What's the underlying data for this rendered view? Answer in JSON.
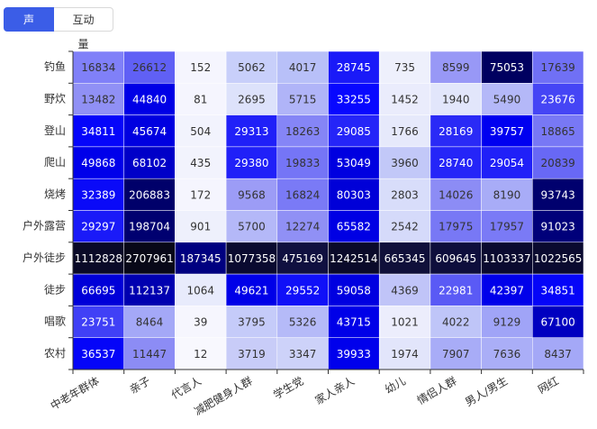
{
  "tabs": [
    "声量",
    "互动量"
  ],
  "chart_data": {
    "type": "heatmap",
    "x_categories": [
      "中老年群体",
      "亲子",
      "代言人",
      "减肥健身人群",
      "学生党",
      "家人亲人",
      "幼儿",
      "情侣人群",
      "男人/男生",
      "网红"
    ],
    "y_categories": [
      "钓鱼",
      "野炊",
      "登山",
      "爬山",
      "烧烤",
      "户外露营",
      "户外徒步",
      "徒步",
      "唱歌",
      "农村"
    ],
    "values": [
      [
        16834,
        26612,
        152,
        5062,
        4017,
        28745,
        735,
        8599,
        75053,
        17639
      ],
      [
        13482,
        44840,
        81,
        2695,
        5715,
        33255,
        1452,
        1940,
        5490,
        23676
      ],
      [
        34811,
        45674,
        504,
        29313,
        18263,
        29085,
        1766,
        28169,
        39757,
        18865
      ],
      [
        49868,
        68102,
        435,
        29380,
        19833,
        53049,
        3960,
        28740,
        29054,
        20839
      ],
      [
        32389,
        206883,
        172,
        9568,
        16824,
        80303,
        2803,
        14026,
        8190,
        93743
      ],
      [
        29297,
        198704,
        901,
        5700,
        12274,
        65582,
        2542,
        17975,
        17957,
        91023
      ],
      [
        1112828,
        2707961,
        187345,
        1077358,
        475169,
        1242514,
        665345,
        609645,
        1103337,
        1022565
      ],
      [
        66695,
        112137,
        1064,
        49621,
        29552,
        59058,
        4369,
        22981,
        42397,
        34851
      ],
      [
        23751,
        8464,
        39,
        3795,
        5326,
        43715,
        1021,
        4022,
        9129,
        67100
      ],
      [
        36537,
        11447,
        12,
        3719,
        3347,
        39933,
        1974,
        7907,
        7636,
        8437
      ]
    ],
    "colors": [
      [
        "#8080f8",
        "#6060f5",
        "#f5f5fe",
        "#c8cffa",
        "#b8c0f8",
        "#1a1af8",
        "#eef0fc",
        "#9898f6",
        "#000060",
        "#7070f5"
      ],
      [
        "#9090f5",
        "#0000e6",
        "#f5f5fe",
        "#dde2fb",
        "#b0b4f8",
        "#0808ff",
        "#eaecfc",
        "#e2e6fb",
        "#b4b8f8",
        "#4545f5"
      ],
      [
        "#0505fa",
        "#0000e0",
        "#f2f3fd",
        "#2020f8",
        "#8585f6",
        "#2525f8",
        "#e6e9fb",
        "#2a2af6",
        "#0000f0",
        "#7878f5"
      ],
      [
        "#0000ea",
        "#0000c8",
        "#f2f3fd",
        "#2020f8",
        "#7575f6",
        "#0000e0",
        "#c2c8f8",
        "#2525f8",
        "#2020f8",
        "#6868f5"
      ],
      [
        "#0a0af8",
        "#00006a",
        "#f5f5fe",
        "#9c9cf6",
        "#7a7af6",
        "#0000d8",
        "#d8ddfa",
        "#8c8cf5",
        "#a8acf7",
        "#00006e"
      ],
      [
        "#1a1af8",
        "#000070",
        "#eef0fc",
        "#b4b8f8",
        "#9090f5",
        "#0000e4",
        "#d5dafa",
        "#7878f5",
        "#7a7af6",
        "#00007a"
      ],
      [
        "#0a0a28",
        "#080818",
        "#000080",
        "#0a0a30",
        "#101040",
        "#0a0a2a",
        "#10103a",
        "#0e0e3c",
        "#0a0a30",
        "#0a0a30"
      ],
      [
        "#0000d8",
        "#0000b0",
        "#e8ebfc",
        "#0000e8",
        "#1010f8",
        "#0000e0",
        "#c0c4f8",
        "#5a5af5",
        "#0000ea",
        "#0505f8"
      ],
      [
        "#4040f6",
        "#a4a8f7",
        "#f6f6fe",
        "#c5cbf9",
        "#b5baf8",
        "#0000e8",
        "#ecedfc",
        "#bfc5f8",
        "#a0a4f7",
        "#0000c0"
      ],
      [
        "#0505f8",
        "#8c8cf5",
        "#f8f8fe",
        "#c8ccf8",
        "#cdd2f9",
        "#0000ec",
        "#e2e5fb",
        "#a8acf7",
        "#aaaef7",
        "#a4a8f7"
      ]
    ]
  }
}
